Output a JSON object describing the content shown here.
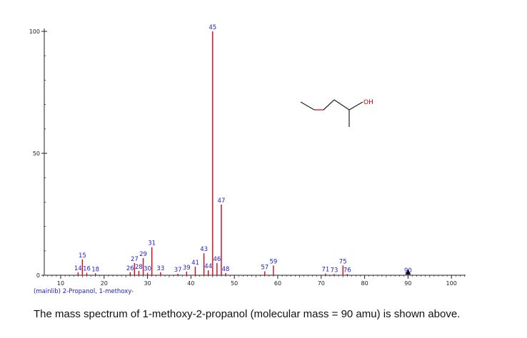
{
  "chart_data": {
    "type": "bar",
    "xlim": [
      5,
      105
    ],
    "ylim": [
      0,
      100
    ],
    "xticks": [
      10,
      20,
      30,
      40,
      50,
      60,
      70,
      80,
      90,
      100
    ],
    "yticks": [
      0,
      50,
      100
    ],
    "peaks": [
      {
        "x": 14,
        "y": 1.2
      },
      {
        "x": 15,
        "y": 6.5
      },
      {
        "x": 16,
        "y": 1.0
      },
      {
        "x": 18,
        "y": 0.8
      },
      {
        "x": 26,
        "y": 1.2
      },
      {
        "x": 27,
        "y": 5.0
      },
      {
        "x": 28,
        "y": 1.8
      },
      {
        "x": 29,
        "y": 7.0
      },
      {
        "x": 30,
        "y": 1.0
      },
      {
        "x": 31,
        "y": 11.5
      },
      {
        "x": 33,
        "y": 1.2
      },
      {
        "x": 37,
        "y": 0.6
      },
      {
        "x": 39,
        "y": 1.5
      },
      {
        "x": 41,
        "y": 3.5
      },
      {
        "x": 43,
        "y": 9.0
      },
      {
        "x": 44,
        "y": 2.0
      },
      {
        "x": 45,
        "y": 100
      },
      {
        "x": 46,
        "y": 5.0
      },
      {
        "x": 47,
        "y": 29
      },
      {
        "x": 48,
        "y": 0.9
      },
      {
        "x": 57,
        "y": 1.6
      },
      {
        "x": 59,
        "y": 4.0
      },
      {
        "x": 71,
        "y": 0.7
      },
      {
        "x": 73,
        "y": 0.5
      },
      {
        "x": 75,
        "y": 4.0
      },
      {
        "x": 76,
        "y": 0.5
      },
      {
        "x": 90,
        "y": 0.3
      }
    ],
    "peak_labels": [
      "14",
      "15",
      "16",
      "18",
      "26",
      "27",
      "28",
      "29",
      "30",
      "31",
      "33",
      "37",
      "39",
      "41",
      "43",
      "44",
      "45",
      "46",
      "47",
      "48",
      "57",
      "59",
      "71",
      "73",
      "75",
      "76",
      "90"
    ],
    "molecular_ion_marker_x": 90,
    "library_label": "(mainlib) 2-Propanol, 1-methoxy-",
    "structure_label": "OH",
    "colors": {
      "peak": "#e0001a",
      "label": "#2020c8",
      "axis": "#222222",
      "oxygen": "#d00000"
    }
  },
  "caption": "The mass spectrum of 1-methoxy-2-propanol (molecular mass = 90 amu) is shown above."
}
